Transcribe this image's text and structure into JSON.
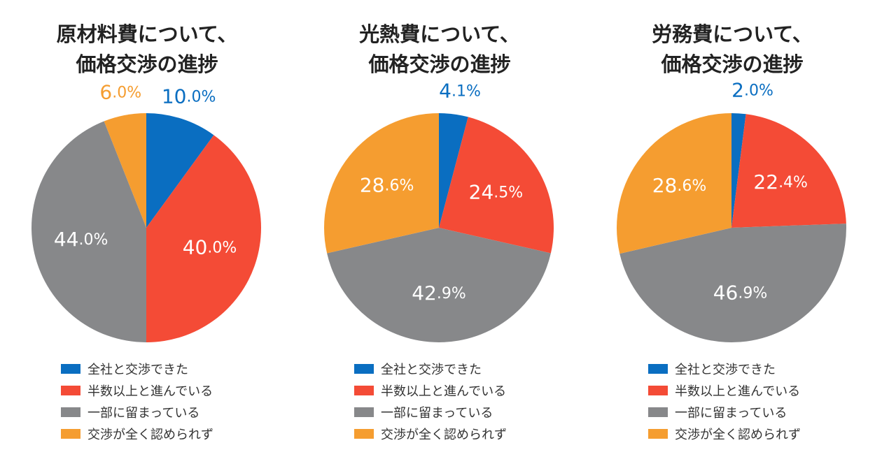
{
  "legend_labels": [
    "全社と交渉できた",
    "半数以上と進んでいる",
    "一部に留まっている",
    "交渉が全く認められず"
  ],
  "colors": [
    "#0A6EC1",
    "#F44B36",
    "#87888A",
    "#F59D30"
  ],
  "chart_data": [
    {
      "type": "pie",
      "title_lines": [
        "原材料費について、",
        "価格交渉の進捗"
      ],
      "categories": [
        "全社と交渉できた",
        "半数以上と進んでいる",
        "一部に留まっている",
        "交渉が全く認められず"
      ],
      "values": [
        10.0,
        40.0,
        44.0,
        6.0
      ],
      "label_int": [
        "10",
        "40",
        "44",
        "6"
      ],
      "label_suffix": [
        ".0%",
        ".0%",
        ".0%",
        ".0%"
      ],
      "label_placement": [
        "outside",
        "inside",
        "inside",
        "outside"
      ]
    },
    {
      "type": "pie",
      "title_lines": [
        "光熱費について、",
        "価格交渉の進捗"
      ],
      "categories": [
        "全社と交渉できた",
        "半数以上と進んでいる",
        "一部に留まっている",
        "交渉が全く認められず"
      ],
      "values": [
        4.1,
        24.5,
        42.9,
        28.6
      ],
      "label_int": [
        "4",
        "24",
        "42",
        "28"
      ],
      "label_suffix": [
        ".1%",
        ".5%",
        ".9%",
        ".6%"
      ],
      "label_placement": [
        "outside",
        "inside",
        "inside",
        "inside"
      ]
    },
    {
      "type": "pie",
      "title_lines": [
        "労務費について、",
        "価格交渉の進捗"
      ],
      "categories": [
        "全社と交渉できた",
        "半数以上と進んでいる",
        "一部に留まっている",
        "交渉が全く認められず"
      ],
      "values": [
        2.0,
        22.4,
        46.9,
        28.6
      ],
      "label_int": [
        "2",
        "22",
        "46",
        "28"
      ],
      "label_suffix": [
        ".0%",
        ".4%",
        ".9%",
        ".6%"
      ],
      "label_placement": [
        "outside",
        "inside",
        "inside",
        "inside"
      ]
    }
  ]
}
